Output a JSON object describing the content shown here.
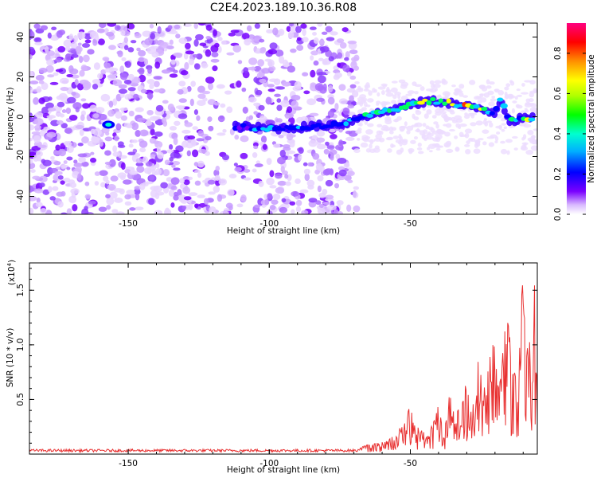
{
  "title": "C2E4.2023.189.10.36.R08",
  "chart_data": [
    {
      "type": "heatmap",
      "xlabel": "Height of straight line (km)",
      "ylabel": "Frequency (Hz)",
      "xlim": [
        -185,
        -5
      ],
      "ylim": [
        -49,
        47
      ],
      "x_ticks": [
        "-150",
        "-100",
        "-50"
      ],
      "y_ticks": [
        "40",
        "20",
        "0",
        "-20",
        "-40"
      ],
      "colorbar": {
        "label": "Normalized spectral amplitude",
        "range": [
          0,
          0.95
        ],
        "ticks": [
          "0.0",
          "0.2",
          "0.4",
          "0.6",
          "0.8"
        ]
      },
      "signal_track": [
        {
          "x": -157,
          "y": -4,
          "amp": 0.55
        },
        {
          "x": -110,
          "y": -5,
          "amp": 0.3
        },
        {
          "x": -100,
          "y": -6,
          "amp": 0.45
        },
        {
          "x": -85,
          "y": -5,
          "amp": 0.35
        },
        {
          "x": -72,
          "y": -3,
          "amp": 0.4
        },
        {
          "x": -68,
          "y": 0,
          "amp": 0.55
        },
        {
          "x": -60,
          "y": 2,
          "amp": 0.6
        },
        {
          "x": -50,
          "y": 6,
          "amp": 0.7
        },
        {
          "x": -43,
          "y": 8,
          "amp": 0.85
        },
        {
          "x": -36,
          "y": 7,
          "amp": 0.75
        },
        {
          "x": -30,
          "y": 5,
          "amp": 0.8
        },
        {
          "x": -25,
          "y": 4,
          "amp": 0.65
        },
        {
          "x": -20,
          "y": 2,
          "amp": 0.5
        },
        {
          "x": -18,
          "y": 9,
          "amp": 0.45
        },
        {
          "x": -15,
          "y": -2,
          "amp": 0.55
        },
        {
          "x": -10,
          "y": -1,
          "amp": 0.7
        },
        {
          "x": -6,
          "y": -1,
          "amp": 0.6
        }
      ]
    },
    {
      "type": "line",
      "xlabel": "Height of straight line (km)",
      "ylabel": "SNR (10 * v/v)",
      "y_multiplier": "(x10",
      "y_multiplier_exp": "4",
      "xlim": [
        -185,
        -5
      ],
      "ylim": [
        0,
        1.75
      ],
      "x_ticks": [
        "-150",
        "-100",
        "-50"
      ],
      "y_ticks": [
        "1.5",
        "1.0",
        "0.5"
      ],
      "series": [
        {
          "color": "#e83030",
          "x": [
            -185,
            -150,
            -110,
            -100,
            -70,
            -66,
            -62,
            -58,
            -55,
            -52,
            -50,
            -48,
            -46,
            -44,
            -42,
            -40,
            -38,
            -36,
            -34,
            -32,
            -30,
            -28,
            -26,
            -24,
            -22,
            -20,
            -18,
            -16,
            -14,
            -12,
            -10,
            -9,
            -8,
            -7,
            -6,
            -5
          ],
          "y": [
            0.02,
            0.03,
            0.03,
            0.04,
            0.03,
            0.08,
            0.1,
            0.12,
            0.2,
            0.3,
            0.45,
            0.2,
            0.35,
            0.15,
            0.3,
            0.45,
            0.18,
            0.6,
            0.3,
            0.55,
            0.65,
            0.4,
            0.85,
            0.6,
            0.9,
            1.1,
            0.7,
            1.3,
            1.0,
            0.6,
            1.75,
            0.9,
            1.2,
            0.5,
            1.55,
            0.45
          ]
        }
      ]
    }
  ]
}
